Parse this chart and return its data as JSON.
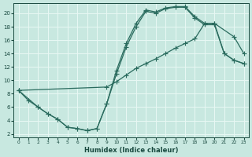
{
  "bg_color": "#c8e8e0",
  "grid_color": "#e8f8f4",
  "line_color": "#2a6b5e",
  "xlabel": "Humidex (Indice chaleur)",
  "xlim": [
    -0.5,
    23.5
  ],
  "ylim": [
    1.5,
    21.5
  ],
  "xticks": [
    0,
    1,
    2,
    3,
    4,
    5,
    6,
    7,
    8,
    9,
    10,
    11,
    12,
    13,
    14,
    15,
    16,
    17,
    18,
    19,
    20,
    21,
    22,
    23
  ],
  "yticks": [
    2,
    4,
    6,
    8,
    10,
    12,
    14,
    16,
    18,
    20
  ],
  "curve1_x": [
    0,
    1,
    2,
    3,
    4,
    5,
    6,
    7,
    8,
    9,
    10,
    11,
    12,
    13,
    14,
    15,
    16,
    17,
    18,
    19,
    20,
    22,
    23
  ],
  "curve1_y": [
    8.5,
    7.0,
    6.0,
    5.0,
    4.2,
    3.0,
    2.8,
    2.5,
    2.8,
    6.5,
    11.5,
    15.5,
    18.5,
    20.5,
    20.2,
    20.8,
    21.0,
    21.0,
    19.5,
    18.5,
    18.5,
    16.5,
    14.0
  ],
  "curve2_x": [
    0,
    2,
    3,
    4,
    5,
    6,
    7,
    8,
    9,
    10,
    11,
    12,
    13,
    14,
    15,
    16,
    17,
    18,
    19,
    20,
    21,
    22,
    23
  ],
  "curve2_y": [
    8.5,
    6.0,
    5.0,
    4.2,
    3.0,
    2.8,
    2.5,
    2.8,
    6.5,
    11.0,
    15.0,
    18.0,
    20.3,
    20.0,
    20.7,
    20.9,
    20.9,
    19.3,
    18.3,
    18.3,
    14.0,
    13.0,
    12.5
  ],
  "curve3_x": [
    0,
    9,
    10,
    11,
    12,
    13,
    14,
    15,
    16,
    17,
    18,
    19,
    20,
    21,
    22,
    23
  ],
  "curve3_y": [
    8.5,
    9.0,
    9.8,
    10.8,
    11.8,
    12.5,
    13.2,
    14.0,
    14.8,
    15.5,
    16.2,
    18.5,
    18.5,
    14.0,
    13.0,
    12.5
  ]
}
